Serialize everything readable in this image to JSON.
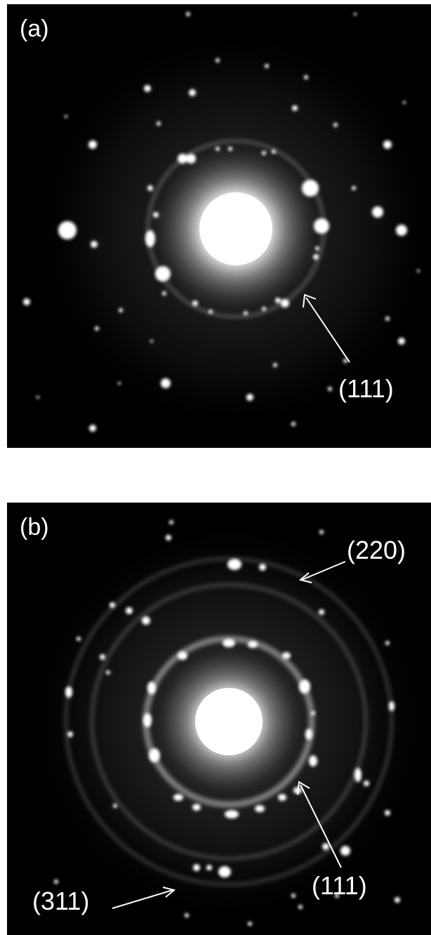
{
  "panels": [
    {
      "letter": "(a)",
      "rings": [
        "(111)"
      ]
    },
    {
      "letter": "(b)",
      "rings": [
        "(220)",
        "(111)",
        "(311)"
      ]
    }
  ],
  "colors": {
    "background": "#000000",
    "spot": "#ffffff",
    "label": "#ffffff",
    "page": "#ffffff"
  }
}
